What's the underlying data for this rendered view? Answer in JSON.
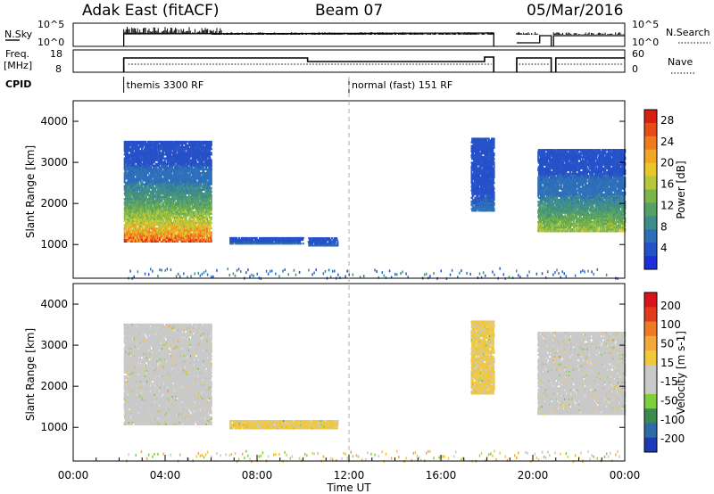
{
  "header": {
    "station": "Adak East (fitACF)",
    "beam": "Beam 07",
    "date": "05/Mar/2016"
  },
  "status_panels": {
    "nsky_label": "N.Sky",
    "nsky_ticks": [
      "10^5",
      "10^0"
    ],
    "nsearch_label": "N.Search",
    "nsearch_ticks": [
      "10^5",
      "10^0"
    ],
    "freq_label": "Freq.",
    "freq_unit": "[MHz]",
    "freq_ticks": [
      "18",
      "8"
    ],
    "nave_label": "Nave",
    "nave_ticks": [
      "60",
      "0"
    ],
    "cpid_label": "CPID",
    "cpid_segments": [
      {
        "start_hour": 2.2,
        "name": "themis 3300 RF"
      },
      {
        "start_hour": 12.0,
        "name": "normal (fast) 151 RF"
      }
    ]
  },
  "chart_data": [
    {
      "type": "heatmap",
      "title": "",
      "xlabel": "",
      "ylabel": "Slant Range [km]",
      "xlim": [
        0,
        24
      ],
      "ylim": [
        180,
        4500
      ],
      "yticks": [
        "1000",
        "2000",
        "3000",
        "4000"
      ],
      "colorbar": {
        "label": "Power [dB]",
        "ticks": [
          "4",
          "8",
          "12",
          "16",
          "20",
          "24",
          "28"
        ],
        "range": [
          0,
          30
        ],
        "colors": [
          "#1d2fd8",
          "#2450c8",
          "#2c6fb8",
          "#3f8d8a",
          "#56a064",
          "#7ab548",
          "#b6c83a",
          "#e9c72b",
          "#f1a625",
          "#ee7c1f",
          "#e74c18",
          "#d81f14"
        ]
      },
      "regions": [
        {
          "t": [
            2.2,
            6.0
          ],
          "r": [
            1050,
            3500
          ],
          "value_range": [
            4,
            26
          ]
        },
        {
          "t": [
            6.8,
            10.0
          ],
          "r": [
            1000,
            1150
          ],
          "value_range": [
            3,
            6
          ]
        },
        {
          "t": [
            10.2,
            11.5
          ],
          "r": [
            950,
            1150
          ],
          "value_range": [
            3,
            6
          ]
        },
        {
          "t": [
            17.3,
            18.3
          ],
          "r": [
            1800,
            3600
          ],
          "value_range": [
            3,
            6
          ]
        },
        {
          "t": [
            20.2,
            24.0
          ],
          "r": [
            1300,
            3300
          ],
          "value_range": [
            4,
            16
          ]
        }
      ]
    },
    {
      "type": "heatmap",
      "title": "",
      "xlabel": "Time UT",
      "ylabel": "Slant Range [km]",
      "xlim": [
        0,
        24
      ],
      "ylim": [
        180,
        4500
      ],
      "yticks": [
        "1000",
        "2000",
        "3000",
        "4000"
      ],
      "xticks": [
        "00:00",
        "04:00",
        "08:00",
        "12:00",
        "16:00",
        "20:00",
        "00:00"
      ],
      "colorbar": {
        "label": "Velocity [m s-1]",
        "ticks": [
          "200",
          "100",
          "50",
          "15",
          "-15",
          "-50",
          "-100",
          "-200"
        ],
        "range": [
          -250,
          250
        ],
        "colors": [
          "#1e39b5",
          "#2f6aa8",
          "#3c8a4e",
          "#7fcf3b",
          "#c9c9c9",
          "#c9c9c9",
          "#f0c83a",
          "#f3a83a",
          "#ee7a24",
          "#e03c1c",
          "#d8141c"
        ]
      },
      "regions": [
        {
          "t": [
            2.2,
            6.0
          ],
          "r": [
            1050,
            3500
          ],
          "value_range": [
            -15,
            15
          ]
        },
        {
          "t": [
            6.8,
            11.5
          ],
          "r": [
            950,
            1150
          ],
          "value_range": [
            15,
            50
          ]
        },
        {
          "t": [
            17.3,
            18.3
          ],
          "r": [
            1800,
            3600
          ],
          "value_range": [
            15,
            50
          ]
        },
        {
          "t": [
            20.2,
            24.0
          ],
          "r": [
            1300,
            3300
          ],
          "value_range": [
            -15,
            15
          ]
        }
      ]
    }
  ]
}
